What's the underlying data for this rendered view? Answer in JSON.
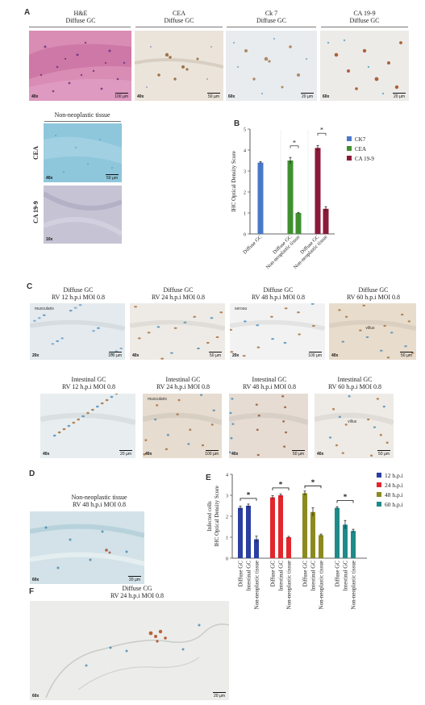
{
  "panel_labels": {
    "a": "A",
    "b": "B",
    "c": "C",
    "d": "D",
    "e": "E",
    "f": "F"
  },
  "panel_a": {
    "titles": [
      {
        "line1": "H&E",
        "line2": "Diffuse GC"
      },
      {
        "line1": "CEA",
        "line2": "Diffuse GC"
      },
      {
        "line1": "Ck 7",
        "line2": "Diffuse GC"
      },
      {
        "line1": "CA 19-9",
        "line2": "Diffuse GC"
      }
    ],
    "mags": [
      "40x",
      "40x",
      "60x",
      "60x"
    ],
    "scales": [
      "100 µm",
      "50 µm",
      "20 µm",
      "20 µm"
    ],
    "nonneo_title": "Non-neoplastic tissue",
    "nonneo_rows": [
      "CEA",
      "CA 19-9"
    ],
    "nonneo_mags": [
      "40x",
      "10x"
    ],
    "nonneo_scale": "50 µm"
  },
  "panel_c": {
    "row1": [
      {
        "line1": "Diffuse GC",
        "line2": "RV 12 h.p.i MOI 0.8",
        "mag": "20x",
        "scale": "100 µm",
        "label": "muscularis"
      },
      {
        "line1": "Diffuse GC",
        "line2": "RV 24 h.p.i MOI 0.8",
        "mag": "40x",
        "scale": "50 µm",
        "label": ""
      },
      {
        "line1": "Diffuse GC",
        "line2": "RV 48 h.p.i MOI 0.8",
        "mag": "20x",
        "scale": "100 µm",
        "label": "serosa"
      },
      {
        "line1": "Diffuse GC",
        "line2": "RV 60 h.p.i MOI 0.8",
        "mag": "40x",
        "scale": "50 µm",
        "label": "villus"
      }
    ],
    "row2": [
      {
        "line1": "Intestinal GC",
        "line2": "RV 12 h.p.i MOI 0.8",
        "mag": "40x",
        "scale": "20 µm",
        "label": ""
      },
      {
        "line1": "Intestinal GC",
        "line2": "RV 24 h.p.i MOI 0.8",
        "mag": "40x",
        "scale": "100 µm",
        "label": "muscularis"
      },
      {
        "line1": "Intestinal GC",
        "line2": "RV 48 h.p.i MOI 0.8",
        "mag": "40x",
        "scale": "50 µm",
        "label": ""
      },
      {
        "line1": "Intestinal GC",
        "line2": "RV 60 h.p.i MOI 0.8",
        "mag": "40x",
        "scale": "50 µm",
        "label": "villus"
      }
    ]
  },
  "panel_d": {
    "line1": "Non-neoplastic tissue",
    "line2": "RV 48 h.p.i MOI 0.8",
    "mag": "60x",
    "scale": "20 µm"
  },
  "panel_f": {
    "line1": "Diffuse CG",
    "line2": "RV 24 h.p.i MOI 0.8",
    "mag": "60x",
    "scale": "20 µm"
  },
  "colors": {
    "ck7": "#4a78c8",
    "cea": "#3f8f2f",
    "ca199": "#8b1a3a",
    "h12": "#2a3fa0",
    "h24": "#e2262c",
    "h48": "#8c8a1e",
    "h60": "#1e8a8a"
  },
  "chart_data": [
    {
      "type": "bar",
      "panel": "B",
      "ylabel": "IHC Optical Density Score",
      "ylim": [
        0,
        5
      ],
      "yticks": [
        0,
        1,
        2,
        3,
        4,
        5
      ],
      "groups": [
        {
          "name": "CK7",
          "bars": [
            {
              "category": "Diffuse GC",
              "value": 3.4,
              "error": 0.05
            }
          ]
        },
        {
          "name": "CEA",
          "bars": [
            {
              "category": "Diffuse GC",
              "value": 3.5,
              "error": 0.15
            },
            {
              "category": "Non-neoplastic tissue",
              "value": 1.0,
              "error": 0.03
            }
          ]
        },
        {
          "name": "CA 19-9",
          "bars": [
            {
              "category": "Diffuse GC",
              "value": 4.1,
              "error": 0.12
            },
            {
              "category": "Non-neoplastic tissue",
              "value": 1.2,
              "error": 0.1
            }
          ]
        }
      ],
      "legend": [
        "CK7",
        "CEA",
        "CA 19-9"
      ],
      "significance": "*"
    },
    {
      "type": "bar",
      "panel": "E",
      "ylabel_line1": "Infected cells",
      "ylabel_line2": "IHC Optical Density Score",
      "ylim": [
        0,
        4
      ],
      "yticks": [
        0,
        1,
        2,
        3,
        4
      ],
      "categories": [
        "Diffuse GC",
        "Intestinal GC",
        "Non-neoplastic tissue"
      ],
      "series": [
        {
          "name": "12 h.p.i",
          "values": [
            2.4,
            2.5,
            0.9
          ],
          "errors": [
            0.08,
            0.08,
            0.15
          ]
        },
        {
          "name": "24 h.p.i",
          "values": [
            2.9,
            3.0,
            1.0
          ],
          "errors": [
            0.08,
            0.06,
            0.04
          ]
        },
        {
          "name": "48 h.p.i",
          "values": [
            3.1,
            2.2,
            1.1
          ],
          "errors": [
            0.1,
            0.2,
            0.05
          ]
        },
        {
          "name": "60 h.p.i",
          "values": [
            2.4,
            1.6,
            1.3
          ],
          "errors": [
            0.06,
            0.2,
            0.08
          ]
        }
      ],
      "significance": "*"
    }
  ]
}
